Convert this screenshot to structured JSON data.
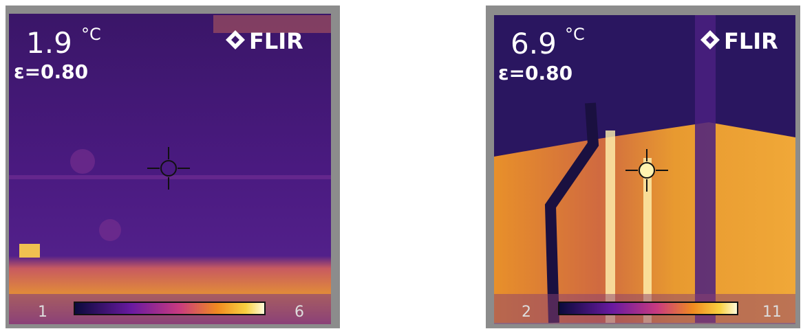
{
  "images": [
    {
      "temperature": "1.9",
      "unit": "°C",
      "emissivity": "ε=0.80",
      "brand": "FLIR",
      "scale_min": "1",
      "scale_max": "6"
    },
    {
      "temperature": "6.9",
      "unit": "°C",
      "emissivity": "ε=0.80",
      "brand": "FLIR",
      "scale_min": "2",
      "scale_max": "11"
    }
  ]
}
